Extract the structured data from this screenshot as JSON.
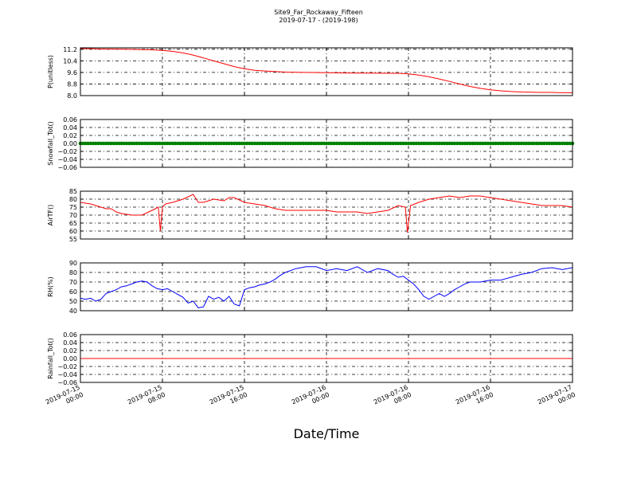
{
  "figure": {
    "title": "Site9_Far_Rockaway_Fifteen",
    "subtitle": "2019-07-17 - (2019-198)",
    "xlabel": "Date/Time"
  },
  "chart_data": [
    {
      "type": "line",
      "ylabel": "P(unitless)",
      "ylim": [
        8.0,
        11.3
      ],
      "yticks": [
        "8.0",
        "8.8",
        "9.6",
        "10.4",
        "11.2"
      ],
      "grid": true,
      "xlim": [
        "2019-07-15 00:00",
        "2019-07-17 00:00"
      ],
      "series": [
        {
          "color": "#ff0000",
          "x_hours": [
            0,
            2,
            4,
            6,
            7,
            8,
            9,
            10,
            11,
            12,
            13,
            14,
            15,
            16,
            17,
            18,
            20,
            22,
            24,
            26,
            28,
            30,
            31,
            32,
            33,
            34,
            35,
            36,
            37,
            38,
            39,
            40,
            41,
            42,
            43,
            44,
            45,
            46,
            47,
            48
          ],
          "values": [
            11.25,
            11.22,
            11.2,
            11.18,
            11.16,
            11.12,
            11.05,
            10.95,
            10.8,
            10.6,
            10.4,
            10.2,
            10.0,
            9.85,
            9.75,
            9.7,
            9.62,
            9.6,
            9.58,
            9.56,
            9.55,
            9.54,
            9.54,
            9.5,
            9.42,
            9.3,
            9.15,
            8.98,
            8.8,
            8.63,
            8.5,
            8.4,
            8.33,
            8.28,
            8.25,
            8.23,
            8.22,
            8.22,
            8.2,
            8.2
          ]
        }
      ]
    },
    {
      "type": "scatter",
      "ylabel": "Snowfall_Tot()",
      "ylim": [
        -0.06,
        0.06
      ],
      "yticks": [
        "−0.06",
        "−0.04",
        "−0.02",
        "0.00",
        "0.02",
        "0.04",
        "0.06"
      ],
      "grid": true,
      "xlim": [
        "2019-07-15 00:00",
        "2019-07-17 00:00"
      ],
      "series": [
        {
          "color": "#008000",
          "constant_value": 0.0,
          "interval_minutes": 15
        }
      ]
    },
    {
      "type": "line",
      "ylabel": "AirTF()",
      "ylim": [
        55,
        85
      ],
      "yticks": [
        "55",
        "60",
        "65",
        "70",
        "75",
        "80",
        "85"
      ],
      "grid": true,
      "xlim": [
        "2019-07-15 00:00",
        "2019-07-17 00:00"
      ],
      "series": [
        {
          "color": "#ff0000",
          "x_hours": [
            0,
            1,
            2,
            2.5,
            3,
            3.5,
            4,
            5,
            6,
            7,
            7.6,
            7.8,
            8.0,
            8.3,
            9,
            10,
            11,
            11.5,
            12,
            13,
            14,
            14.5,
            15,
            16,
            17,
            18,
            19,
            20,
            21,
            22,
            23,
            24,
            25,
            26,
            27,
            28,
            29,
            30,
            31,
            31.7,
            31.9,
            32.2,
            33,
            34,
            35,
            36,
            37,
            38,
            39,
            40,
            41,
            42,
            43,
            44,
            45,
            46,
            47,
            48
          ],
          "values": [
            78,
            77,
            75,
            74,
            74,
            72,
            71,
            70,
            70,
            73,
            75,
            60,
            75,
            77,
            78,
            80,
            83,
            78,
            78,
            80,
            79,
            81,
            81,
            78,
            77,
            76,
            74,
            73,
            73,
            73,
            73,
            73,
            72,
            72,
            72,
            71,
            72,
            73,
            76,
            75,
            59,
            76,
            78,
            80,
            81,
            82,
            81,
            82,
            82,
            81,
            80,
            79,
            78,
            77,
            76,
            76,
            76,
            75
          ]
        }
      ]
    },
    {
      "type": "line",
      "ylabel": "RH(%)",
      "ylim": [
        40,
        90
      ],
      "yticks": [
        "40",
        "50",
        "60",
        "70",
        "80",
        "90"
      ],
      "grid": true,
      "xlim": [
        "2019-07-15 00:00",
        "2019-07-17 00:00"
      ],
      "series": [
        {
          "color": "#0000ff",
          "x_hours": [
            0,
            0.5,
            1,
            1.5,
            2,
            2.5,
            3,
            3.5,
            4,
            4.5,
            5,
            5.5,
            6,
            6.5,
            7,
            7.5,
            8,
            8.5,
            9,
            9.5,
            10,
            10.5,
            11,
            11.5,
            12,
            12.5,
            13,
            13.5,
            14,
            14.5,
            15,
            15.5,
            16,
            16.5,
            17,
            17.5,
            18,
            18.5,
            19,
            19.5,
            20,
            21,
            22,
            23,
            24,
            25,
            26,
            27,
            28,
            29,
            30,
            30.5,
            31,
            31.5,
            32,
            32.5,
            33,
            33.5,
            34,
            34.5,
            35,
            35.5,
            36,
            36.5,
            37,
            37.5,
            38,
            39,
            40,
            41,
            42,
            43,
            44,
            45,
            46,
            47,
            48
          ],
          "values": [
            53,
            52,
            53,
            50,
            52,
            58,
            60,
            62,
            65,
            66,
            68,
            70,
            71,
            70,
            66,
            63,
            62,
            63,
            60,
            57,
            54,
            48,
            50,
            43,
            44,
            55,
            52,
            54,
            50,
            55,
            47,
            45,
            62,
            64,
            65,
            67,
            68,
            70,
            73,
            77,
            80,
            84,
            86,
            86,
            82,
            84,
            82,
            86,
            80,
            84,
            82,
            78,
            75,
            76,
            72,
            68,
            62,
            55,
            52,
            55,
            58,
            55,
            58,
            62,
            65,
            68,
            70,
            70,
            72,
            72,
            75,
            78,
            80,
            84,
            85,
            83,
            85
          ]
        }
      ]
    },
    {
      "type": "line",
      "ylabel": "Rainfall_Tot()",
      "ylim": [
        -0.06,
        0.06
      ],
      "yticks": [
        "−0.06",
        "−0.04",
        "−0.02",
        "0.00",
        "0.02",
        "0.04",
        "0.06"
      ],
      "grid": true,
      "xlim": [
        "2019-07-15 00:00",
        "2019-07-17 00:00"
      ],
      "series": [
        {
          "color": "#ff0000",
          "x_hours": [
            0,
            48
          ],
          "values": [
            0.0,
            0.0
          ]
        }
      ]
    }
  ],
  "x_axis": {
    "tick_hours": [
      0,
      8,
      16,
      24,
      32,
      40,
      48
    ],
    "tick_labels": [
      [
        "2019-07-15",
        "00:00"
      ],
      [
        "2019-07-15",
        "08:00"
      ],
      [
        "2019-07-15",
        "16:00"
      ],
      [
        "2019-07-16",
        "00:00"
      ],
      [
        "2019-07-16",
        "08:00"
      ],
      [
        "2019-07-16",
        "16:00"
      ],
      [
        "2019-07-17",
        "00:00"
      ]
    ]
  }
}
